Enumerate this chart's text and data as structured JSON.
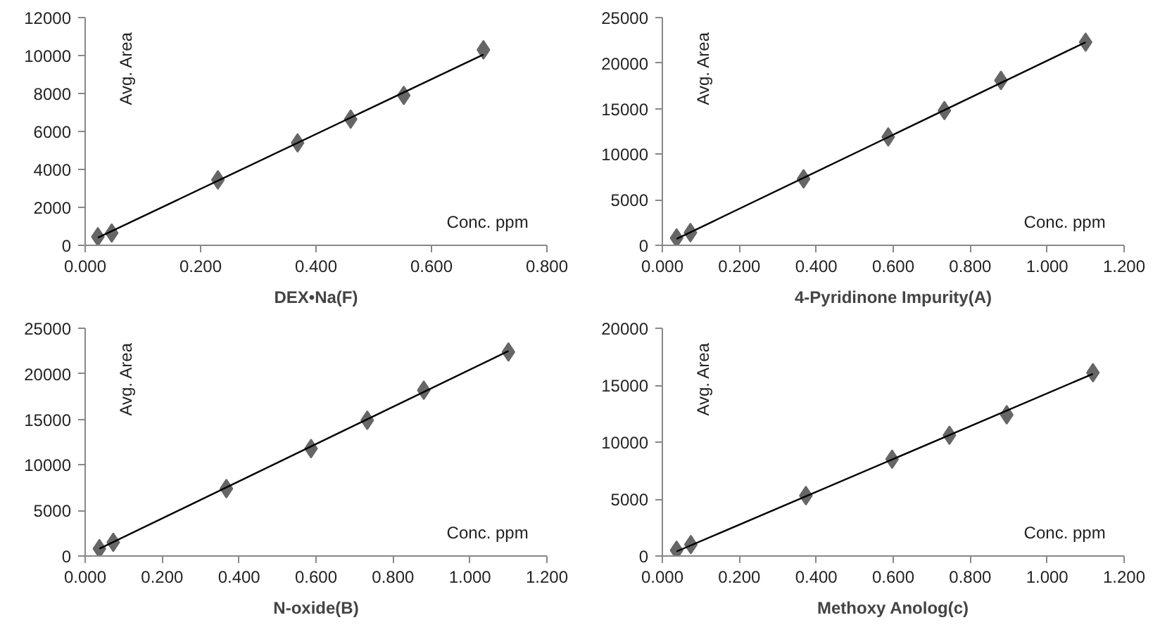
{
  "chart_data": [
    {
      "type": "scatter",
      "xlabel": "DEX•Na(F)",
      "ylabel": "Avg. Area",
      "annotations": [
        "Conc. ppm"
      ],
      "grid": false,
      "xlim": [
        0,
        0.8
      ],
      "xticks": [
        {
          "value": 0,
          "label": "0.000"
        },
        {
          "value": 0.2,
          "label": "0.200"
        },
        {
          "value": 0.4,
          "label": "0.400"
        },
        {
          "value": 0.6,
          "label": "0.600"
        },
        {
          "value": 0.8,
          "label": "0.800"
        }
      ],
      "ylim": [
        0,
        12000
      ],
      "yticks": [
        0,
        2000,
        4000,
        6000,
        8000,
        10000,
        12000
      ],
      "series": [
        {
          "marker": "diamond",
          "color": "#666666",
          "x": [
            0.022,
            0.046,
            0.23,
            0.368,
            0.46,
            0.552,
            0.69
          ],
          "values": [
            450,
            650,
            3450,
            5400,
            6650,
            7900,
            10300
          ]
        },
        {
          "type": "line",
          "color": "#000000",
          "x": [
            0.022,
            0.69
          ],
          "values": [
            400,
            10050
          ]
        }
      ]
    },
    {
      "type": "scatter",
      "xlabel": "4-Pyridinone Impurity(A)",
      "ylabel": "Avg. Area",
      "annotations": [
        "Conc. ppm"
      ],
      "grid": false,
      "xlim": [
        0,
        1.2
      ],
      "xticks": [
        {
          "value": 0,
          "label": "0.000"
        },
        {
          "value": 0.2,
          "label": "0.200"
        },
        {
          "value": 0.4,
          "label": "0.400"
        },
        {
          "value": 0.6,
          "label": "0.600"
        },
        {
          "value": 0.8,
          "label": "0.800"
        },
        {
          "value": 1.0,
          "label": "1.000"
        },
        {
          "value": 1.2,
          "label": "1.200"
        }
      ],
      "ylim": [
        0,
        25000
      ],
      "yticks": [
        0,
        5000,
        10000,
        15000,
        20000,
        25000
      ],
      "series": [
        {
          "marker": "diamond",
          "color": "#666666",
          "x": [
            0.037,
            0.073,
            0.367,
            0.587,
            0.733,
            0.88,
            1.1
          ],
          "values": [
            800,
            1400,
            7300,
            11900,
            14800,
            18100,
            22300
          ]
        },
        {
          "type": "line",
          "color": "#000000",
          "x": [
            0.037,
            1.1
          ],
          "values": [
            700,
            22300
          ]
        }
      ]
    },
    {
      "type": "scatter",
      "xlabel": "N-oxide(B)",
      "ylabel": "Avg. Area",
      "annotations": [
        "Conc. ppm"
      ],
      "grid": false,
      "xlim": [
        0,
        1.2
      ],
      "xticks": [
        {
          "value": 0,
          "label": "0.000"
        },
        {
          "value": 0.2,
          "label": "0.200"
        },
        {
          "value": 0.4,
          "label": "0.400"
        },
        {
          "value": 0.6,
          "label": "0.600"
        },
        {
          "value": 0.8,
          "label": "0.800"
        },
        {
          "value": 1.0,
          "label": "1.000"
        },
        {
          "value": 1.2,
          "label": "1.200"
        }
      ],
      "ylim": [
        0,
        25000
      ],
      "yticks": [
        0,
        5000,
        10000,
        15000,
        20000,
        25000
      ],
      "series": [
        {
          "marker": "diamond",
          "color": "#666666",
          "x": [
            0.037,
            0.073,
            0.367,
            0.587,
            0.733,
            0.88,
            1.1
          ],
          "values": [
            800,
            1500,
            7400,
            11800,
            14900,
            18200,
            22400
          ]
        },
        {
          "type": "line",
          "color": "#000000",
          "x": [
            0.037,
            1.1
          ],
          "values": [
            800,
            22500
          ]
        }
      ]
    },
    {
      "type": "scatter",
      "xlabel": "Methoxy Anolog(c)",
      "ylabel": "Avg. Area",
      "annotations": [
        "Conc. ppm"
      ],
      "grid": false,
      "xlim": [
        0,
        1.2
      ],
      "xticks": [
        {
          "value": 0,
          "label": "0.000"
        },
        {
          "value": 0.2,
          "label": "0.200"
        },
        {
          "value": 0.4,
          "label": "0.400"
        },
        {
          "value": 0.6,
          "label": "0.600"
        },
        {
          "value": 0.8,
          "label": "0.800"
        },
        {
          "value": 1.0,
          "label": "1.000"
        },
        {
          "value": 1.2,
          "label": "1.200"
        }
      ],
      "ylim": [
        0,
        20000
      ],
      "yticks": [
        0,
        5000,
        10000,
        15000,
        20000
      ],
      "series": [
        {
          "marker": "diamond",
          "color": "#666666",
          "x": [
            0.037,
            0.074,
            0.373,
            0.597,
            0.746,
            0.895,
            1.119
          ],
          "values": [
            500,
            1000,
            5300,
            8500,
            10600,
            12400,
            16100
          ]
        },
        {
          "type": "line",
          "color": "#000000",
          "x": [
            0.037,
            1.119
          ],
          "values": [
            400,
            16000
          ]
        }
      ]
    }
  ]
}
